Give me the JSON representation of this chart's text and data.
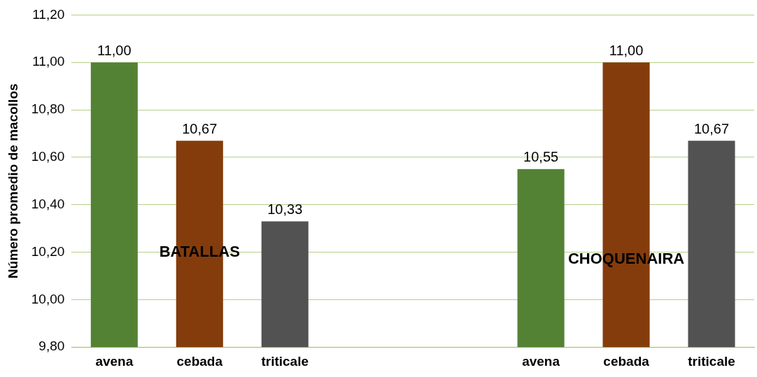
{
  "chart_data": {
    "type": "bar",
    "ylabel": "Número promedio de macollos",
    "categories": [
      "avena",
      "cebada",
      "triticale",
      null,
      null,
      "avena",
      "cebada",
      "triticale"
    ],
    "values": [
      11.0,
      10.67,
      10.33,
      null,
      null,
      10.55,
      11.0,
      10.67
    ],
    "colors": [
      "#548235",
      "#843c0c",
      "#525252",
      null,
      null,
      "#548235",
      "#843c0c",
      "#525252"
    ],
    "value_labels": [
      "11,00",
      "10,67",
      "10,33",
      null,
      null,
      "10,55",
      "11,00",
      "10,67"
    ],
    "ylim": [
      9.8,
      11.2
    ],
    "yticks": [
      {
        "value": 9.8,
        "label": "9,80"
      },
      {
        "value": 10.0,
        "label": "10,00"
      },
      {
        "value": 10.2,
        "label": "10,20"
      },
      {
        "value": 10.4,
        "label": "10,40"
      },
      {
        "value": 10.6,
        "label": "10,60"
      },
      {
        "value": 10.8,
        "label": "10,80"
      },
      {
        "value": 11.0,
        "label": "11,00"
      },
      {
        "value": 11.2,
        "label": "11,20"
      }
    ],
    "grid": "y",
    "legend": false,
    "annotations": [
      "BATALLAS",
      "CHOQUENAIRA"
    ]
  }
}
